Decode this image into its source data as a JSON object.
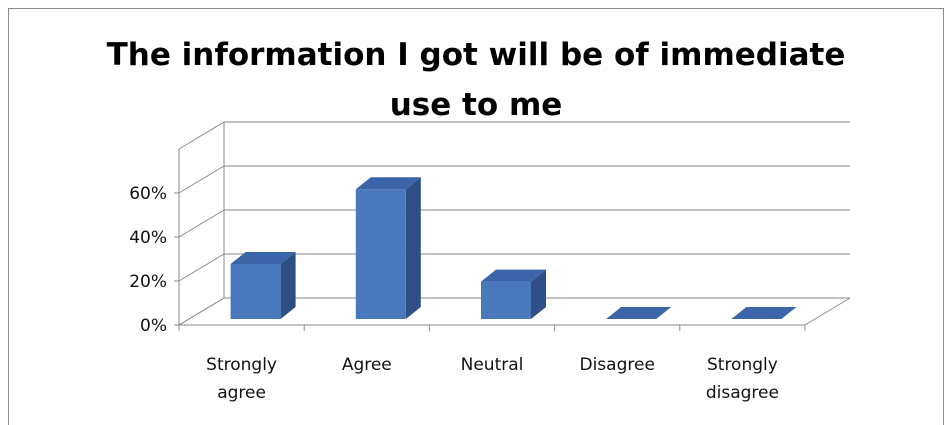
{
  "chart_data": {
    "type": "bar",
    "title_lines": [
      "The information I got will be of immediate",
      "use to me"
    ],
    "categories": [
      "Strongly agree",
      "Agree",
      "Neutral",
      "Disagree",
      "Strongly disagree"
    ],
    "category_label_lines": [
      [
        "Strongly",
        "agree"
      ],
      [
        "Agree"
      ],
      [
        "Neutral"
      ],
      [
        "Disagree"
      ],
      [
        "Strongly",
        "disagree"
      ]
    ],
    "values": [
      25,
      59,
      17,
      0,
      0
    ],
    "y_ticks": [
      "0%",
      "20%",
      "40%",
      "60%"
    ],
    "ylim": [
      0,
      60
    ],
    "grid": true,
    "style": "3d-column",
    "colors": {
      "front": "#4a78bd",
      "side": "#2d4f86",
      "top": "#3b65a8"
    }
  }
}
